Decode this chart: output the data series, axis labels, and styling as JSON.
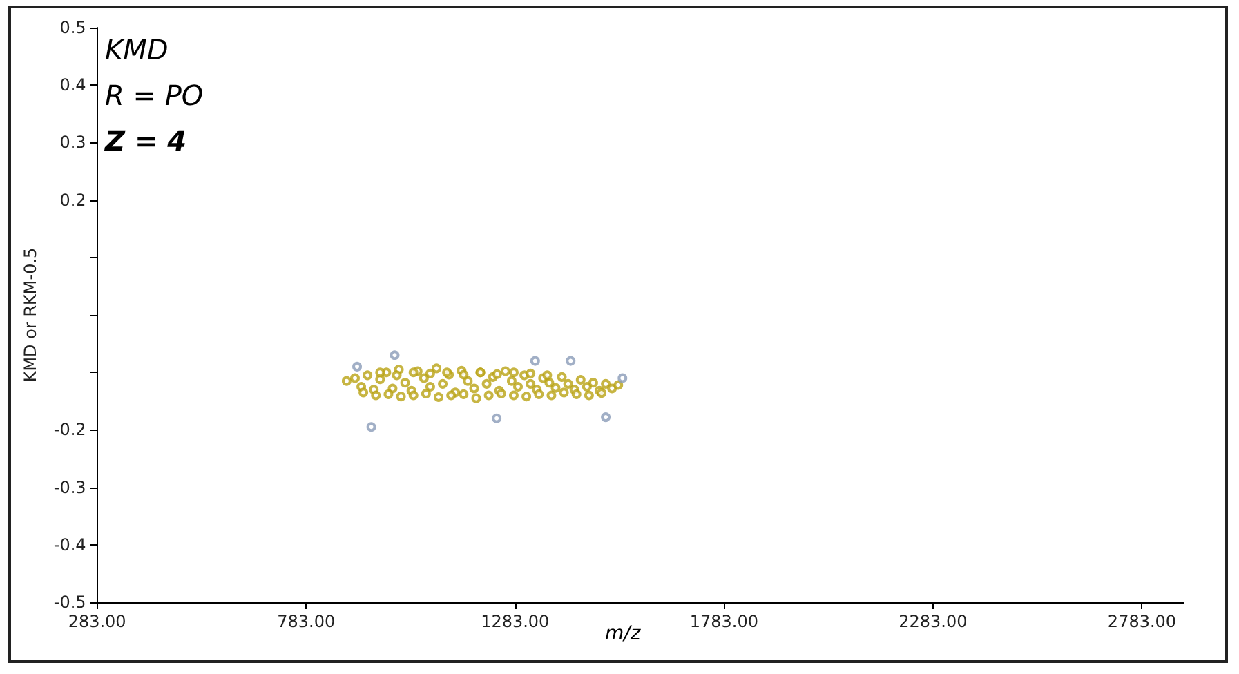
{
  "chart_data": {
    "type": "scatter",
    "xlabel": "m/z",
    "ylabel": "KMD or RKM-0.5",
    "annotations": [
      "KMD",
      "R = PO",
      "Z = 4"
    ],
    "xlim": [
      283,
      2883
    ],
    "ylim": [
      -0.5,
      0.5
    ],
    "xticks": [
      {
        "value": 283,
        "label": "283.00"
      },
      {
        "value": 783,
        "label": "783.00"
      },
      {
        "value": 1283,
        "label": "1283.00"
      },
      {
        "value": 1783,
        "label": "1783.00"
      },
      {
        "value": 2283,
        "label": "2283.00"
      },
      {
        "value": 2783,
        "label": "2783.00"
      }
    ],
    "yticks": [
      -0.5,
      -0.4,
      -0.3,
      -0.2,
      {
        "value": -0.1,
        "label": null
      },
      {
        "value": 0,
        "label": null
      },
      {
        "value": 0.1,
        "label": null
      },
      0.2,
      0.3,
      0.4,
      0.5
    ],
    "grid": false,
    "marker": "circle",
    "series": [
      {
        "color": "#b9a314",
        "x": [
          880,
          900,
          915,
          930,
          945,
          960,
          975,
          990,
          1005,
          1020,
          1035,
          1050,
          1065,
          1080,
          1095,
          1110,
          1125,
          1140,
          1155,
          1170,
          1185,
          1200,
          1215,
          1230,
          1245,
          1260,
          1275,
          1290,
          1305,
          1320,
          1335,
          1350,
          1365,
          1380,
          1395,
          1410,
          1425,
          1440,
          1455,
          1470,
          1485,
          1500,
          1515,
          1530,
          920,
          950,
          980,
          1010,
          1040,
          1070,
          1100,
          1130,
          1160,
          1190,
          1220,
          1250,
          1280,
          1310,
          1340,
          1370,
          1400,
          1430,
          1460,
          1490,
          960,
          1000,
          1040,
          1080,
          1120,
          1160,
          1200,
          1240,
          1280,
          1320,
          1360
        ],
        "values": [
          -0.115,
          -0.11,
          -0.125,
          -0.105,
          -0.13,
          -0.112,
          -0.1,
          -0.128,
          -0.095,
          -0.118,
          -0.132,
          -0.098,
          -0.11,
          -0.125,
          -0.093,
          -0.12,
          -0.104,
          -0.135,
          -0.097,
          -0.115,
          -0.128,
          -0.1,
          -0.12,
          -0.108,
          -0.132,
          -0.098,
          -0.115,
          -0.125,
          -0.105,
          -0.12,
          -0.13,
          -0.11,
          -0.118,
          -0.127,
          -0.108,
          -0.12,
          -0.13,
          -0.113,
          -0.125,
          -0.118,
          -0.132,
          -0.12,
          -0.128,
          -0.122,
          -0.135,
          -0.14,
          -0.138,
          -0.142,
          -0.14,
          -0.137,
          -0.143,
          -0.14,
          -0.138,
          -0.145,
          -0.14,
          -0.137,
          -0.14,
          -0.142,
          -0.138,
          -0.14,
          -0.135,
          -0.138,
          -0.14,
          -0.136,
          -0.1,
          -0.105,
          -0.1,
          -0.102,
          -0.1,
          -0.104,
          -0.1,
          -0.103,
          -0.1,
          -0.102,
          -0.105
        ]
      },
      {
        "color": "#8a9bb8",
        "x": [
          995,
          1331,
          1416,
          1239,
          1500,
          939,
          905,
          1540
        ],
        "values": [
          -0.07,
          -0.08,
          -0.08,
          -0.18,
          -0.178,
          -0.195,
          -0.09,
          -0.11
        ]
      }
    ]
  }
}
